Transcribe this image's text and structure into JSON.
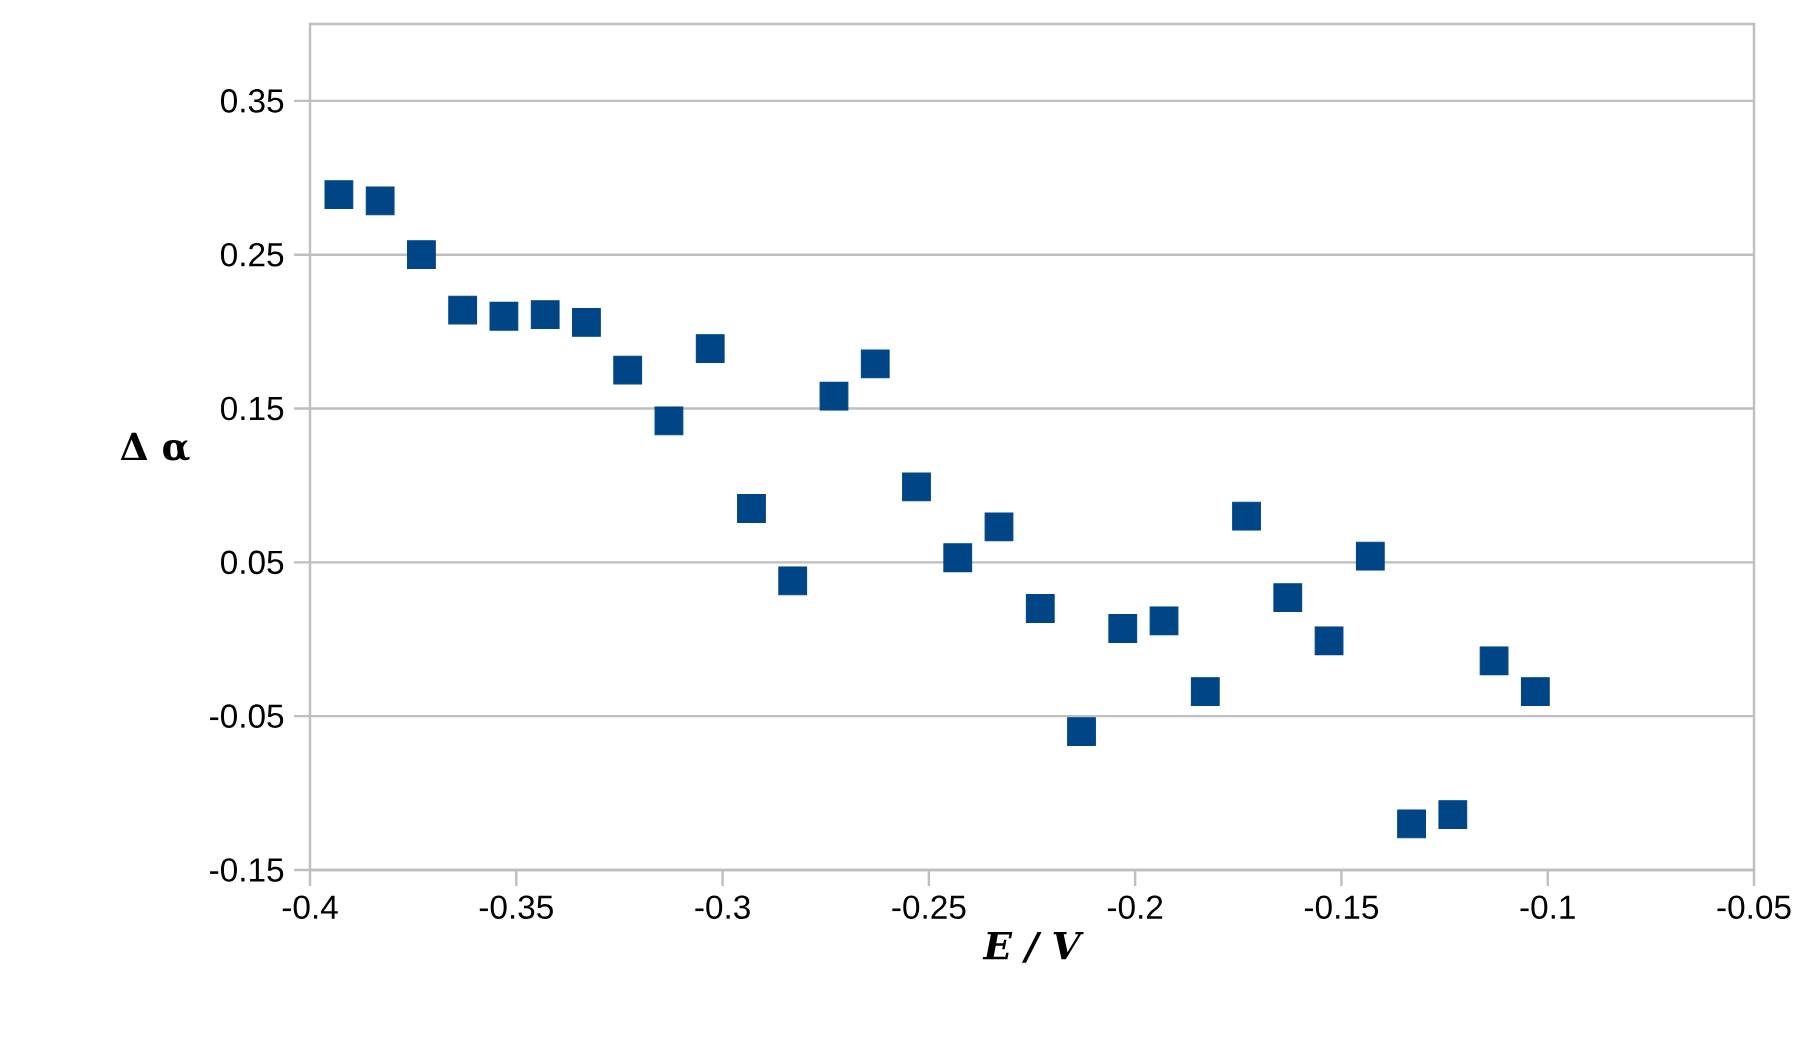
{
  "chart_data": {
    "type": "scatter",
    "xlabel": "E / V",
    "ylabel": "Δ α",
    "x": [
      -0.393,
      -0.383,
      -0.373,
      -0.363,
      -0.353,
      -0.343,
      -0.333,
      -0.323,
      -0.313,
      -0.303,
      -0.293,
      -0.283,
      -0.273,
      -0.263,
      -0.253,
      -0.243,
      -0.233,
      -0.223,
      -0.213,
      -0.203,
      -0.193,
      -0.183,
      -0.173,
      -0.163,
      -0.153,
      -0.143,
      -0.133,
      -0.123,
      -0.113,
      -0.103
    ],
    "values": [
      0.289,
      0.285,
      0.25,
      0.214,
      0.21,
      0.211,
      0.206,
      0.175,
      0.142,
      0.189,
      0.085,
      0.038,
      0.158,
      0.179,
      0.099,
      0.053,
      0.073,
      0.02,
      -0.06,
      0.007,
      0.012,
      -0.034,
      0.08,
      0.027,
      -0.001,
      0.054,
      -0.12,
      -0.114,
      -0.014,
      -0.034
    ],
    "color": "#004586",
    "marker": "square",
    "grid": "y",
    "xlim": [
      -0.4,
      -0.05
    ],
    "xticks": [
      -0.4,
      -0.35,
      -0.3,
      -0.25,
      -0.2,
      -0.15,
      -0.1,
      -0.05
    ],
    "ylim": [
      -0.15,
      0.4
    ],
    "yticks": [
      -0.15,
      -0.05,
      0.05,
      0.15,
      0.25,
      0.35
    ]
  }
}
